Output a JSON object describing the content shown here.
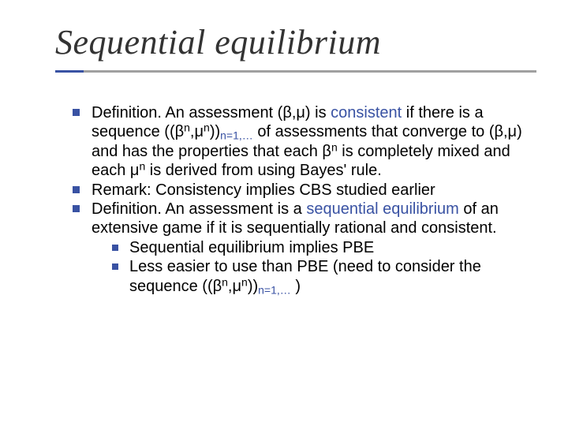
{
  "slide": {
    "title": "Sequential equilibrium",
    "accent_color": "#3952a3",
    "rule_grey": "#a0a0a0",
    "background": "#ffffff",
    "bullets": {
      "b1": {
        "def_prefix": "Definition. An assessment (β,μ) is ",
        "consistent_word": "consistent",
        "def_mid1": " if there is a sequence ((β",
        "sup_n1": "n",
        "def_mid2": ",μ",
        "sup_n2": "n",
        "def_mid3": "))",
        "sub_seq": "n=1,…",
        "def_mid4": " of assessments that converge to (β,μ) and has the properties that each β",
        "sup_n3": "n",
        "def_mid5": " is completely mixed and each μ",
        "sup_n4": "n",
        "def_end": " is derived from using Bayes' rule."
      },
      "b2": "Remark: Consistency implies CBS studied earlier",
      "b3": {
        "def_prefix": "Definition. An assessment is a ",
        "seqeq_word": "sequential equilibrium",
        "def_mid": " of an extensive game if it is sequentially rational and consistent.",
        "sub": {
          "s1": "Sequential equilibrium implies PBE",
          "s2": {
            "t1": "Less easier to use than PBE (need to consider the sequence ((β",
            "sup_n1": "n",
            "t2": ",μ",
            "sup_n2": "n",
            "t3": "))",
            "sub_seq": "n=1,…",
            "t4": " )"
          }
        }
      }
    }
  }
}
